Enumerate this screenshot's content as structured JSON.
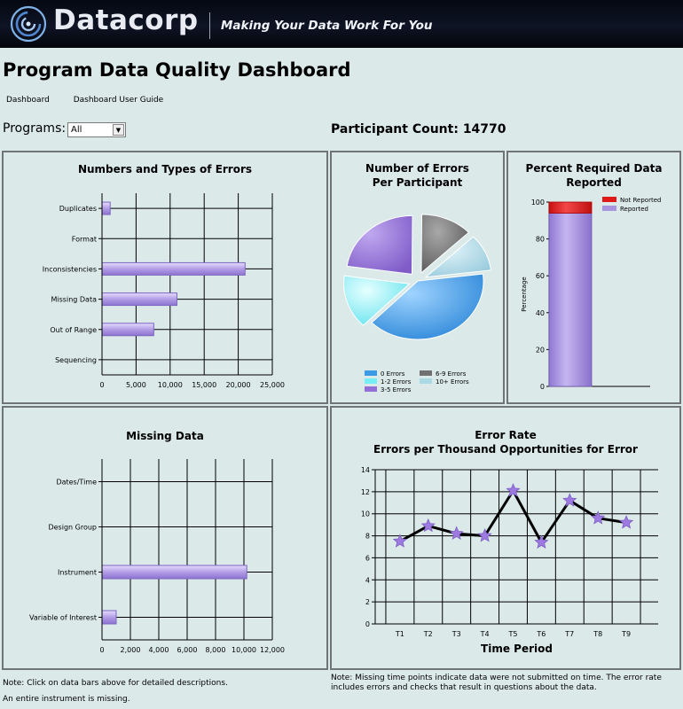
{
  "banner": {
    "brand": "Datacorp",
    "tagline": "Making Your Data Work For You",
    "logo_icon": "swirl-logo-icon"
  },
  "page_title": "Program Data Quality Dashboard",
  "nav": {
    "dashboard": "Dashboard",
    "user_guide": "Dashboard User Guide"
  },
  "filters": {
    "programs_label": "Programs:",
    "programs_value": "All"
  },
  "participant_count": "Participant Count: 14770",
  "notes": {
    "left_1": "Note: Click on data bars above for detailed descriptions.",
    "left_2": "An entire instrument is missing.",
    "right_1": "Note: Missing time points indicate data were not submitted on time. The error rate",
    "right_2": "includes errors and checks that result in questions about the data."
  },
  "colors": {
    "background": "#dbe9e9",
    "bar_purple": "#a994e0",
    "pie_blue": "#3a9ae6",
    "pie_cyan": "#75eef5",
    "pie_purple": "#9270d8",
    "pie_gray": "#707070",
    "pie_lightblue": "#acd9e6",
    "not_reported_red": "#e01818",
    "line_star": "#9e7ae0"
  },
  "chart_data": [
    {
      "type": "bar",
      "orientation": "horizontal",
      "title": "Numbers and Types of Errors",
      "categories": [
        "Duplicates",
        "Format",
        "Inconsistencies",
        "Missing Data",
        "Out of Range",
        "Sequencing"
      ],
      "values": [
        1200,
        0,
        21000,
        11000,
        7600,
        0
      ],
      "xlim": [
        0,
        25000
      ],
      "xticks": [
        "0",
        "5,000",
        "10,000",
        "15,000",
        "20,000",
        "25,000"
      ],
      "grid": true
    },
    {
      "type": "pie",
      "title_line1": "Number of Errors",
      "title_line2": "Per Participant",
      "labels": [
        "0 Errors",
        "1-2 Errors",
        "3-5 Errors",
        "6-9 Errors",
        "10+ Errors"
      ],
      "values": [
        44,
        15,
        23,
        12,
        6
      ],
      "legend_placement": "bottom"
    },
    {
      "type": "bar",
      "stacked": true,
      "title_line1": "Percent Required Data",
      "title_line2": "Reported",
      "ylabel": "Percentage",
      "series": [
        {
          "name": "Reported",
          "values": [
            94
          ]
        },
        {
          "name": "Not Reported",
          "values": [
            6
          ]
        }
      ],
      "ylim": [
        0,
        100
      ],
      "yticks": [
        "0",
        "20",
        "40",
        "60",
        "80",
        "100"
      ],
      "legend_placement": "top-right"
    },
    {
      "type": "bar",
      "orientation": "horizontal",
      "title": "Missing Data",
      "categories": [
        "Dates/Time",
        "Design Group",
        "Instrument",
        "Variable of Interest"
      ],
      "values": [
        0,
        0,
        10200,
        1000
      ],
      "xlim": [
        0,
        12000
      ],
      "xticks": [
        "0",
        "2,000",
        "4,000",
        "6,000",
        "8,000",
        "10,000",
        "12,000"
      ],
      "grid": true
    },
    {
      "type": "line",
      "title_line1": "Error Rate",
      "title_line2": "Errors per Thousand Opportunities for Error",
      "xlabel": "Time Period",
      "categories": [
        "T1",
        "T2",
        "T3",
        "T4",
        "T5",
        "T6",
        "T7",
        "T8",
        "T9"
      ],
      "values": [
        7.5,
        8.9,
        8.2,
        8.0,
        12.1,
        7.4,
        11.2,
        9.6,
        9.2
      ],
      "ylim": [
        0,
        14
      ],
      "yticks": [
        "0",
        "2",
        "4",
        "6",
        "8",
        "10",
        "12",
        "14"
      ],
      "grid": true
    }
  ]
}
